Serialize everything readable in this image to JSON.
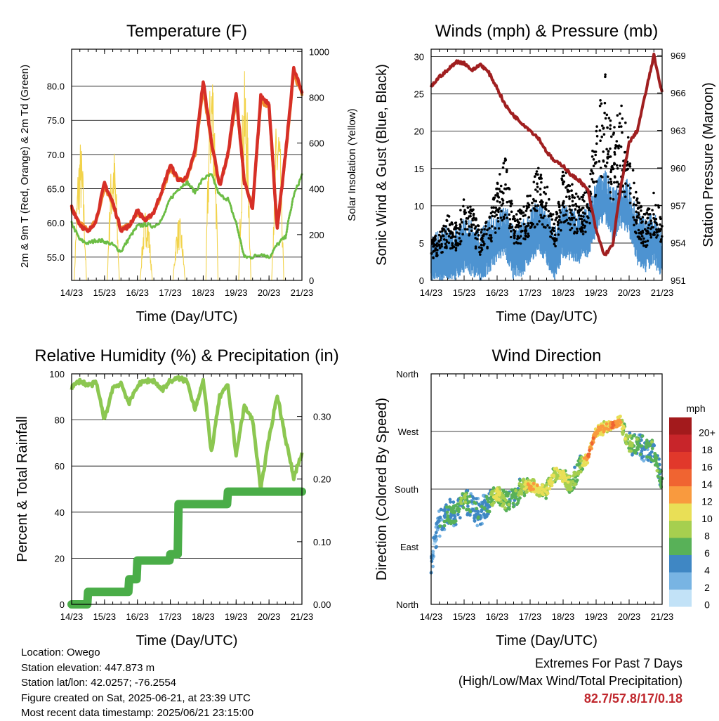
{
  "time_ticks": [
    "14/23",
    "15/23",
    "16/23",
    "17/23",
    "18/23",
    "19/23",
    "20/23",
    "21/23"
  ],
  "chart_data": [
    {
      "type": "line",
      "title": "Temperature (F)",
      "xlabel": "Time (Day/UTC)",
      "ylabel": "2m & 9m T (Red, Orange) & 2m Td (Green)",
      "y2label": "Solar Insolation (Yellow)",
      "ylim": [
        51.6,
        85.4
      ],
      "yticks": [
        "55.0",
        "60.0",
        "65.0",
        "70.0",
        "75.0",
        "80.0"
      ],
      "y2lim": [
        0,
        1010
      ],
      "y2ticks": [
        "0",
        "200",
        "400",
        "600",
        "800",
        "1000"
      ],
      "x": [
        0,
        0.25,
        0.5,
        0.75,
        1,
        1.25,
        1.5,
        1.75,
        2,
        2.25,
        2.5,
        2.75,
        3,
        3.25,
        3.5,
        3.75,
        4,
        4.25,
        4.5,
        4.75,
        5,
        5.25,
        5.5,
        5.75,
        6,
        6.25,
        6.5,
        6.75,
        7
      ],
      "series": [
        {
          "name": "2m T",
          "color": "#d62f27",
          "values": [
            62.3,
            59.8,
            58.6,
            60.5,
            65.8,
            63.0,
            59.0,
            59.5,
            61.8,
            60.3,
            61.6,
            64.8,
            68.5,
            66.2,
            66.5,
            70.5,
            80.7,
            72.0,
            65.4,
            70.0,
            79.0,
            66.0,
            62.0,
            78.5,
            77.5,
            59.0,
            70.0,
            82.5,
            79.2
          ]
        },
        {
          "name": "9m T",
          "color": "#f08a2c",
          "values": [
            62.0,
            60.0,
            58.9,
            60.4,
            65.0,
            62.8,
            59.2,
            59.6,
            61.5,
            60.4,
            61.5,
            64.5,
            68.0,
            66.3,
            66.6,
            70.0,
            79.5,
            71.5,
            65.6,
            69.6,
            78.2,
            66.3,
            62.5,
            77.8,
            77.0,
            59.6,
            69.6,
            81.8,
            78.8
          ]
        },
        {
          "name": "2m Td",
          "color": "#6cbd45",
          "values": [
            60.0,
            57.5,
            57.0,
            57.5,
            57.3,
            56.8,
            55.8,
            57.8,
            59.5,
            59.8,
            59.5,
            60.5,
            63.5,
            65.0,
            66.0,
            64.5,
            66.5,
            67.0,
            64.0,
            63.5,
            60.0,
            55.0,
            55.0,
            55.5,
            55.0,
            56.8,
            58.0,
            64.0,
            67.0
          ]
        },
        {
          "name": "Solar",
          "color": "#f2d34b",
          "axis": 2,
          "values": [
            0,
            620,
            0,
            650,
            0,
            600,
            0,
            620,
            0,
            320,
            0,
            560,
            0,
            280,
            0,
            800,
            0,
            1000,
            0,
            640,
            0,
            920,
            0,
            900,
            0,
            760,
            0,
            950,
            0
          ]
        }
      ]
    },
    {
      "type": "scatter",
      "title": "Winds (mph) & Pressure (mb)",
      "xlabel": "Time (Day/UTC)",
      "ylabel": "Sonic Wind & Gust (Blue, Black)",
      "y2label": "Station Pressure (Maroon)",
      "ylim": [
        0,
        31
      ],
      "yticks": [
        "0",
        "5",
        "10",
        "15",
        "20",
        "25",
        "30"
      ],
      "y2lim": [
        951,
        969.5
      ],
      "y2ticks": [
        "951",
        "954",
        "957",
        "960",
        "963",
        "966",
        "969"
      ],
      "x": [
        0,
        0.25,
        0.5,
        0.75,
        1,
        1.25,
        1.5,
        1.75,
        2,
        2.25,
        2.5,
        2.75,
        3,
        3.25,
        3.5,
        3.75,
        4,
        4.25,
        4.5,
        4.75,
        5,
        5.25,
        5.5,
        5.75,
        6,
        6.25,
        6.5,
        6.75,
        7
      ],
      "series": [
        {
          "name": "Wind",
          "color": "#4d93d1",
          "values": [
            3,
            3.5,
            4,
            3.8,
            5,
            4.5,
            3.5,
            5,
            6,
            7,
            4,
            4.5,
            6,
            7.5,
            6,
            4,
            7,
            6.5,
            6,
            7,
            10,
            12,
            9,
            11,
            10,
            6,
            5,
            6,
            4
          ]
        },
        {
          "name": "Gust",
          "color": "#000000",
          "values": [
            5,
            6,
            8,
            7,
            10,
            9,
            6,
            8,
            12,
            15,
            8,
            9,
            11,
            14,
            12,
            7,
            14,
            12,
            10,
            12,
            20,
            26,
            18,
            22,
            17,
            10,
            8,
            11,
            8
          ]
        },
        {
          "name": "Pressure",
          "color": "#a01f20",
          "axis": 2,
          "values": [
            966.5,
            967.3,
            967.8,
            968.5,
            968.4,
            967.8,
            968.3,
            967.6,
            966.4,
            965.0,
            964.2,
            963.6,
            963.0,
            962.4,
            961.3,
            960.5,
            960.2,
            959.4,
            959.0,
            958.2,
            955.0,
            953.0,
            953.8,
            958.5,
            962.0,
            963.0,
            966.0,
            969.0,
            966.0
          ]
        }
      ]
    },
    {
      "type": "line",
      "title": "Relative Humidity (%) & Precipitation (in)",
      "xlabel": "Time (Day/UTC)",
      "ylabel": "Percent & Total Rainfall",
      "ylim": [
        0,
        100
      ],
      "yticks": [
        "0",
        "20",
        "40",
        "60",
        "80",
        "100"
      ],
      "y2lim": [
        0,
        0.368
      ],
      "y2ticks": [
        "0.00",
        "0.10",
        "0.20",
        "0.30"
      ],
      "x": [
        0,
        0.25,
        0.5,
        0.75,
        1,
        1.25,
        1.5,
        1.75,
        2,
        2.25,
        2.5,
        2.75,
        3,
        3.25,
        3.5,
        3.75,
        4,
        4.25,
        4.5,
        4.75,
        5,
        5.25,
        5.5,
        5.75,
        6,
        6.25,
        6.5,
        6.75,
        7
      ],
      "series": [
        {
          "name": "RH",
          "color": "#8cc751",
          "values": [
            94,
            97,
            95,
            96,
            80,
            94,
            96,
            87,
            95,
            97,
            97,
            93,
            97,
            98,
            97,
            85,
            97,
            66,
            90,
            95,
            65,
            86,
            80,
            50,
            72,
            91,
            72,
            55,
            66
          ]
        },
        {
          "name": "Precip",
          "color": "#4aad48",
          "axis": 2,
          "values": [
            0,
            0,
            0.02,
            0.02,
            0.02,
            0.02,
            0.02,
            0.04,
            0.07,
            0.07,
            0.07,
            0.07,
            0.08,
            0.16,
            0.16,
            0.16,
            0.16,
            0.16,
            0.16,
            0.18,
            0.18,
            0.18,
            0.18,
            0.18,
            0.18,
            0.18,
            0.18,
            0.18,
            0.18
          ]
        }
      ]
    },
    {
      "type": "scatter",
      "title": "Wind Direction",
      "xlabel": "Time (Day/UTC)",
      "ylabel": "Direction (Colored By Speed)",
      "yticks": [
        "North",
        "East",
        "South",
        "West",
        "North"
      ],
      "ylim": [
        0,
        360
      ],
      "colorbar_label": "mph",
      "colorbar_ticks": [
        "20+",
        "18",
        "16",
        "14",
        "12",
        "10",
        "8",
        "6",
        "4",
        "2",
        "0"
      ],
      "colorbar_colors": [
        "#a31a1c",
        "#c8252a",
        "#e1382b",
        "#f06431",
        "#f99a3e",
        "#e9df56",
        "#a6cf4f",
        "#58b158",
        "#3f87c4",
        "#78b4e3",
        "#c2e2f7"
      ],
      "x": [
        0,
        0.25,
        0.5,
        0.75,
        1,
        1.25,
        1.5,
        1.75,
        2,
        2.25,
        2.5,
        2.75,
        3,
        3.25,
        3.5,
        3.75,
        4,
        4.25,
        4.5,
        4.75,
        5,
        5.25,
        5.5,
        5.75,
        6,
        6.25,
        6.5,
        6.75,
        7
      ],
      "values": [
        70,
        125,
        145,
        140,
        165,
        150,
        140,
        160,
        175,
        160,
        165,
        185,
        185,
        180,
        175,
        205,
        200,
        185,
        215,
        230,
        270,
        275,
        280,
        285,
        250,
        250,
        245,
        240,
        190
      ],
      "speed": [
        2,
        3,
        4,
        5,
        6,
        4,
        3,
        5,
        9,
        6,
        5,
        7,
        10,
        9,
        8,
        8,
        9,
        7,
        6,
        12,
        11,
        10,
        12,
        10,
        6,
        5,
        4,
        6,
        5
      ]
    }
  ],
  "info": {
    "location": "Location: Owego",
    "elevation": "Station elevation: 447.873 m",
    "latlon": "Station lat/lon: 42.0257; -76.2554",
    "created": "Figure created on Sat, 2025-06-21, at 23:39 UTC",
    "recent": "Most recent data timestamp: 2025/06/21 23:15:00"
  },
  "extremes": {
    "title": "Extremes For Past 7 Days",
    "subtitle": "(High/Low/Max Wind/Total Precipitation)",
    "values": "82.7/57.8/17/0.18"
  }
}
